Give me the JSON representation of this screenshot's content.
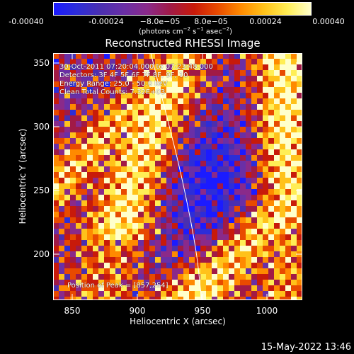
{
  "colorbar": {
    "ticks": [
      "-0.00040",
      "-0.00024",
      "−8.0e−05",
      "8.0e−05",
      "0.00024",
      "0.00040"
    ],
    "unit_prefix": "(photons cm",
    "unit_exp1": "−2",
    "unit_mid": " s",
    "unit_exp2": "−1",
    "unit_mid2": " asec",
    "unit_exp3": "−2",
    "unit_suffix": ")",
    "range": [
      -0.0004,
      0.0004
    ]
  },
  "title": "Reconstructed RHESSI Image",
  "annotations": {
    "time": "30-Oct-2011 07:20:04.000 to 07:23:48.000",
    "detectors": "Detectors: 3F 4F 5F 6F 7F 8F, 9F, 10",
    "energy": "Energy Range: 25.0 - 50.0 keV",
    "clean": "Clean    Total Counts: 7.32E+03",
    "peak": "Position of Peak = [857,254]"
  },
  "axes": {
    "xlabel": "Heliocentric X (arcsec)",
    "ylabel": "Heliocentric Y (arcsec)",
    "xticks": [
      "850",
      "900",
      "950",
      "1000"
    ],
    "yticks": [
      "350",
      "300",
      "250",
      "200"
    ],
    "xlim": [
      835,
      1025
    ],
    "ylim": [
      163,
      358
    ]
  },
  "date_stamp": "15-May-2022 13:46",
  "colors": {
    "colormap": [
      "#1b1bff",
      "#2d2dd8",
      "#4a2fb0",
      "#6a2fa6",
      "#8a2a8a",
      "#a11a46",
      "#c81a0a",
      "#e84a00",
      "#ff8a00",
      "#ffc21a",
      "#ffee55",
      "#ffffcc"
    ]
  }
}
